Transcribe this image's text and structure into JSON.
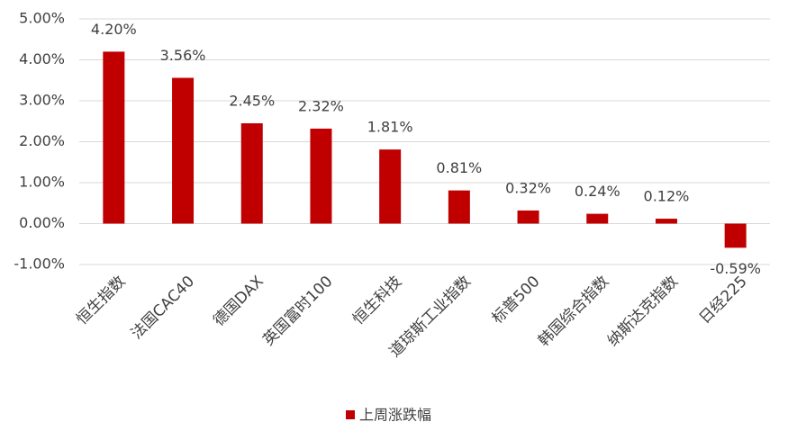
{
  "chart_data": {
    "type": "bar",
    "categories": [
      "恒生指数",
      "法国CAC40",
      "德国DAX",
      "英国富时100",
      "恒生科技",
      "道琼斯工业指数",
      "标普500",
      "韩国综合指数",
      "纳斯达克指数",
      "日经225"
    ],
    "series": [
      {
        "name": "上周涨跌幅",
        "color": "#c00000",
        "values": [
          4.2,
          3.56,
          2.45,
          2.32,
          1.81,
          0.81,
          0.32,
          0.24,
          0.12,
          -0.59
        ],
        "value_labels": [
          "4.20%",
          "3.56%",
          "2.45%",
          "2.32%",
          "1.81%",
          "0.81%",
          "0.32%",
          "0.24%",
          "0.12%",
          "-0.59%"
        ]
      }
    ],
    "ylim": [
      -1,
      5
    ],
    "yticks": [
      {
        "value": -1,
        "label": "-1.00%"
      },
      {
        "value": 0,
        "label": "0.00%"
      },
      {
        "value": 1,
        "label": "1.00%"
      },
      {
        "value": 2,
        "label": "2.00%"
      },
      {
        "value": 3,
        "label": "3.00%"
      },
      {
        "value": 4,
        "label": "4.00%"
      },
      {
        "value": 5,
        "label": "5.00%"
      }
    ],
    "grid": true,
    "legend": "bottom"
  }
}
